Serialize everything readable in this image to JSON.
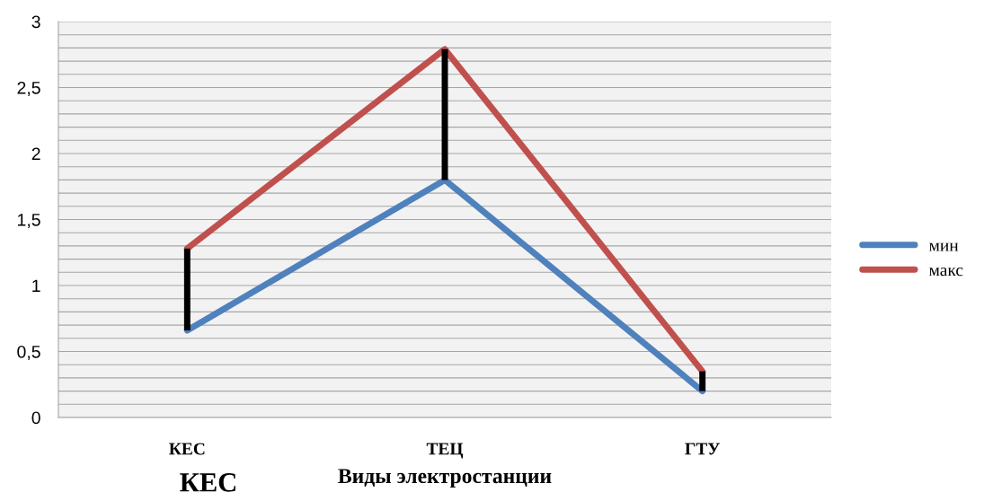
{
  "chart_data": {
    "type": "line",
    "xlabel": "Виды электростанции",
    "categories": [
      "КЕС",
      "ТЕЦ",
      "ГТУ"
    ],
    "series": [
      {
        "name": "мин",
        "color": "#4f81bd",
        "values": [
          0.66,
          1.8,
          0.2
        ],
        "errors": [
          [
            0.66,
            1.28
          ],
          [
            1.8,
            2.79
          ],
          [
            0.2,
            0.35
          ]
        ]
      },
      {
        "name": "макс",
        "color": "#c0504d",
        "values": [
          1.28,
          2.79,
          0.35
        ]
      }
    ],
    "ylim": [
      0,
      3
    ],
    "yticks": [
      0,
      {
        "value": 0.5,
        "label": "0,5"
      },
      1,
      {
        "value": 1.5,
        "label": "1,5"
      },
      2,
      {
        "value": 2.5,
        "label": "2,5"
      },
      3
    ],
    "grid": "y",
    "legend": "right",
    "marker": "none",
    "line_style": "solid",
    "annotations": [
      "КЕС"
    ]
  }
}
